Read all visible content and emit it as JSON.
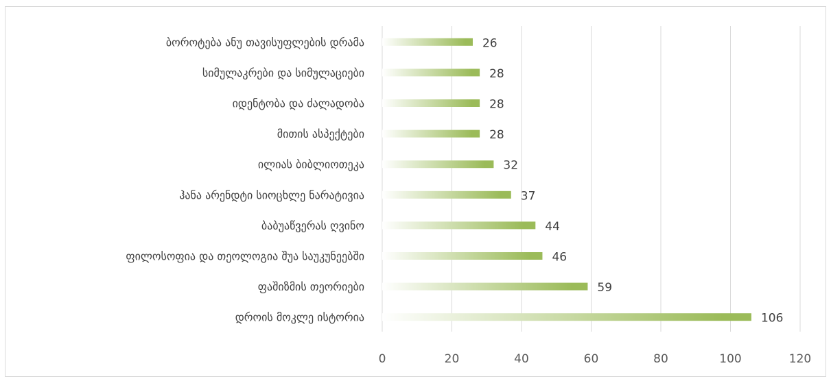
{
  "chart_data": {
    "type": "bar",
    "orientation": "horizontal",
    "categories": [
      "ბოროტება ანუ თავისუფლების დრამა",
      "სიმულაკრები და სიმულაციები",
      "იდენტობა და ძალადობა",
      "მითის ასპექტები",
      "ილიას ბიბლიოთეკა",
      "ჰანა არენდტი სიოცხლე ნარატივია",
      "ბაბუაწვერას ღვინო",
      "ფილოსოფია და თეოლოგია შუა საუკუნეებში",
      "ფაშიზმის თეორიები",
      "დროის მოკლე ისტორია"
    ],
    "values": [
      26,
      28,
      28,
      28,
      32,
      37,
      44,
      46,
      59,
      106
    ],
    "xlim": [
      0,
      120
    ],
    "x_ticks": [
      "0",
      "20",
      "40",
      "60",
      "80",
      "100",
      "120"
    ],
    "grid": true,
    "data_labels": true,
    "bar_color_start": "#ffffff",
    "bar_color_end": "#9bbb59"
  }
}
